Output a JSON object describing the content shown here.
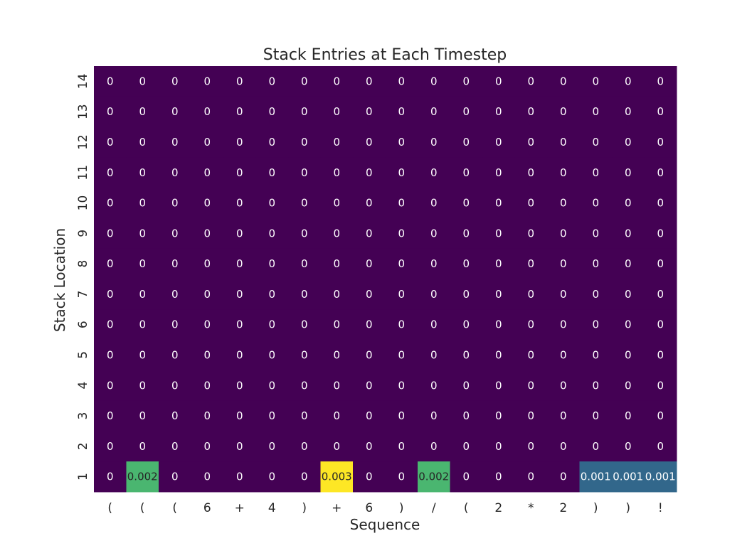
{
  "chart_data": {
    "type": "heatmap",
    "title": "Stack Entries at Each Timestep",
    "xlabel": "Sequence",
    "ylabel": "Stack Location",
    "x_categories": [
      "(",
      "(",
      "(",
      "6",
      "+",
      "4",
      ")",
      "+",
      "6",
      ")",
      "/",
      "(",
      "2",
      "*",
      "2",
      ")",
      ")",
      "!"
    ],
    "y_categories": [
      "14",
      "13",
      "12",
      "11",
      "10",
      "9",
      "8",
      "7",
      "6",
      "5",
      "4",
      "3",
      "2",
      "1"
    ],
    "values": [
      [
        0,
        0,
        0,
        0,
        0,
        0,
        0,
        0,
        0,
        0,
        0,
        0,
        0,
        0,
        0,
        0,
        0,
        0
      ],
      [
        0,
        0,
        0,
        0,
        0,
        0,
        0,
        0,
        0,
        0,
        0,
        0,
        0,
        0,
        0,
        0,
        0,
        0
      ],
      [
        0,
        0,
        0,
        0,
        0,
        0,
        0,
        0,
        0,
        0,
        0,
        0,
        0,
        0,
        0,
        0,
        0,
        0
      ],
      [
        0,
        0,
        0,
        0,
        0,
        0,
        0,
        0,
        0,
        0,
        0,
        0,
        0,
        0,
        0,
        0,
        0,
        0
      ],
      [
        0,
        0,
        0,
        0,
        0,
        0,
        0,
        0,
        0,
        0,
        0,
        0,
        0,
        0,
        0,
        0,
        0,
        0
      ],
      [
        0,
        0,
        0,
        0,
        0,
        0,
        0,
        0,
        0,
        0,
        0,
        0,
        0,
        0,
        0,
        0,
        0,
        0
      ],
      [
        0,
        0,
        0,
        0,
        0,
        0,
        0,
        0,
        0,
        0,
        0,
        0,
        0,
        0,
        0,
        0,
        0,
        0
      ],
      [
        0,
        0,
        0,
        0,
        0,
        0,
        0,
        0,
        0,
        0,
        0,
        0,
        0,
        0,
        0,
        0,
        0,
        0
      ],
      [
        0,
        0,
        0,
        0,
        0,
        0,
        0,
        0,
        0,
        0,
        0,
        0,
        0,
        0,
        0,
        0,
        0,
        0
      ],
      [
        0,
        0,
        0,
        0,
        0,
        0,
        0,
        0,
        0,
        0,
        0,
        0,
        0,
        0,
        0,
        0,
        0,
        0
      ],
      [
        0,
        0,
        0,
        0,
        0,
        0,
        0,
        0,
        0,
        0,
        0,
        0,
        0,
        0,
        0,
        0,
        0,
        0
      ],
      [
        0,
        0,
        0,
        0,
        0,
        0,
        0,
        0,
        0,
        0,
        0,
        0,
        0,
        0,
        0,
        0,
        0,
        0
      ],
      [
        0,
        0,
        0,
        0,
        0,
        0,
        0,
        0,
        0,
        0,
        0,
        0,
        0,
        0,
        0,
        0,
        0,
        0
      ],
      [
        0,
        0.002,
        0,
        0,
        0,
        0,
        0,
        0.003,
        0,
        0,
        0.002,
        0,
        0,
        0,
        0,
        0.001,
        0.001,
        0.001
      ]
    ],
    "colormap": "viridis",
    "vmin": 0,
    "vmax": 0.003,
    "colorbar": false,
    "grid": false,
    "annotations": true
  }
}
